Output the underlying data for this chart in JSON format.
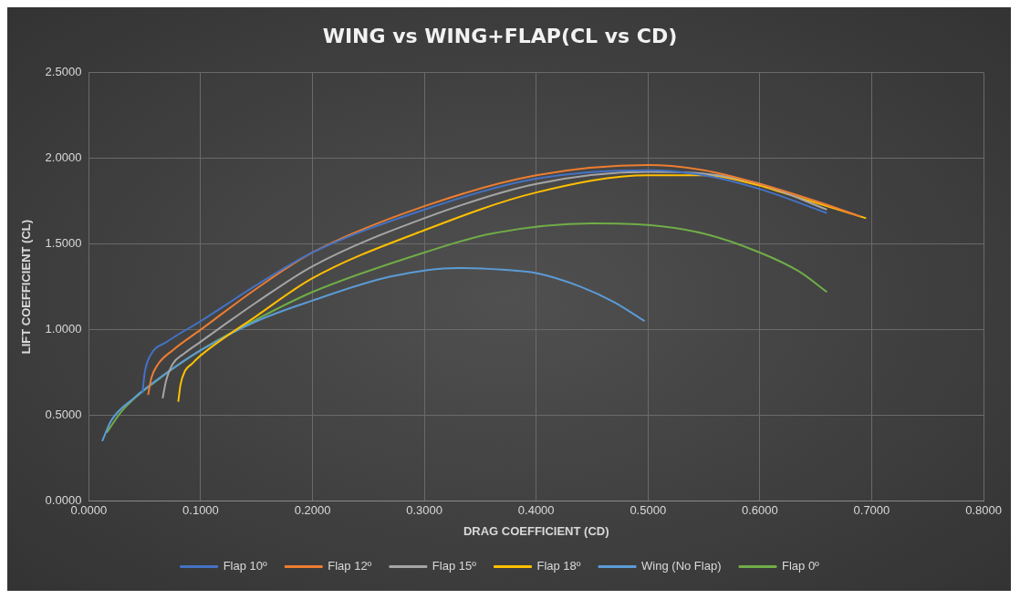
{
  "chart_data": {
    "type": "line",
    "title": "WING vs WING+FLAP(CL vs CD)",
    "xlabel": "DRAG COEFFICIENT (CD)",
    "ylabel": "LIFT COEFFICIENT (CL)",
    "xlim": [
      0,
      0.8
    ],
    "ylim": [
      0,
      2.5
    ],
    "xticks": [
      {
        "value": 0,
        "label": "0.0000"
      },
      {
        "value": 0.1,
        "label": "0.1000"
      },
      {
        "value": 0.2,
        "label": "0.2000"
      },
      {
        "value": 0.3,
        "label": "0.3000"
      },
      {
        "value": 0.4,
        "label": "0.4000"
      },
      {
        "value": 0.5,
        "label": "0.5000"
      },
      {
        "value": 0.6,
        "label": "0.6000"
      },
      {
        "value": 0.7,
        "label": "0.7000"
      },
      {
        "value": 0.8,
        "label": "0.8000"
      }
    ],
    "yticks": [
      {
        "value": 0,
        "label": "0.0000"
      },
      {
        "value": 0.5,
        "label": "0.5000"
      },
      {
        "value": 1,
        "label": "1.0000"
      },
      {
        "value": 1.5,
        "label": "1.5000"
      },
      {
        "value": 2,
        "label": "2.0000"
      },
      {
        "value": 2.5,
        "label": "2.5000"
      }
    ],
    "grid": true,
    "legend": "bottom",
    "marker": "none",
    "line_style": "solid",
    "series": [
      {
        "name": "Flap 10º",
        "color": "#4472c4",
        "x": [
          0.048,
          0.05,
          0.055,
          0.07,
          0.1,
          0.15,
          0.2,
          0.3,
          0.4,
          0.5,
          0.55,
          0.6,
          0.66
        ],
        "values": [
          0.63,
          0.75,
          0.85,
          0.93,
          1.05,
          1.26,
          1.45,
          1.7,
          1.88,
          1.93,
          1.9,
          1.82,
          1.68
        ]
      },
      {
        "name": "Flap 12º",
        "color": "#ed7d31",
        "x": [
          0.053,
          0.056,
          0.062,
          0.075,
          0.1,
          0.15,
          0.2,
          0.3,
          0.4,
          0.5,
          0.55,
          0.6,
          0.65,
          0.69
        ],
        "values": [
          0.62,
          0.72,
          0.8,
          0.88,
          1.0,
          1.24,
          1.45,
          1.72,
          1.9,
          1.96,
          1.93,
          1.85,
          1.75,
          1.66
        ]
      },
      {
        "name": "Flap 15º",
        "color": "#a5a5a5",
        "x": [
          0.066,
          0.069,
          0.075,
          0.085,
          0.1,
          0.15,
          0.2,
          0.3,
          0.4,
          0.5,
          0.55,
          0.6,
          0.66
        ],
        "values": [
          0.6,
          0.7,
          0.8,
          0.86,
          0.93,
          1.16,
          1.37,
          1.65,
          1.85,
          1.92,
          1.91,
          1.85,
          1.7
        ]
      },
      {
        "name": "Flap 18º",
        "color": "#ffc000",
        "x": [
          0.08,
          0.082,
          0.086,
          0.092,
          0.1,
          0.15,
          0.2,
          0.3,
          0.4,
          0.5,
          0.55,
          0.6,
          0.62,
          0.695
        ],
        "values": [
          0.58,
          0.68,
          0.76,
          0.8,
          0.85,
          1.08,
          1.3,
          1.58,
          1.8,
          1.9,
          1.9,
          1.84,
          1.8,
          1.65
        ]
      },
      {
        "name": "Wing (No Flap)",
        "color": "#5b9bd5",
        "x": [
          0.012,
          0.02,
          0.04,
          0.07,
          0.1,
          0.15,
          0.2,
          0.27,
          0.33,
          0.37,
          0.4,
          0.44,
          0.47,
          0.497
        ],
        "values": [
          0.35,
          0.47,
          0.6,
          0.75,
          0.88,
          1.05,
          1.17,
          1.31,
          1.36,
          1.35,
          1.33,
          1.25,
          1.16,
          1.05
        ]
      },
      {
        "name": "Flap 0º",
        "color": "#70ad47",
        "x": [
          0.016,
          0.03,
          0.06,
          0.1,
          0.15,
          0.2,
          0.3,
          0.36,
          0.45,
          0.5,
          0.55,
          0.6,
          0.635,
          0.66
        ],
        "values": [
          0.4,
          0.53,
          0.7,
          0.88,
          1.06,
          1.22,
          1.45,
          1.56,
          1.62,
          1.61,
          1.56,
          1.45,
          1.34,
          1.22
        ]
      }
    ]
  }
}
